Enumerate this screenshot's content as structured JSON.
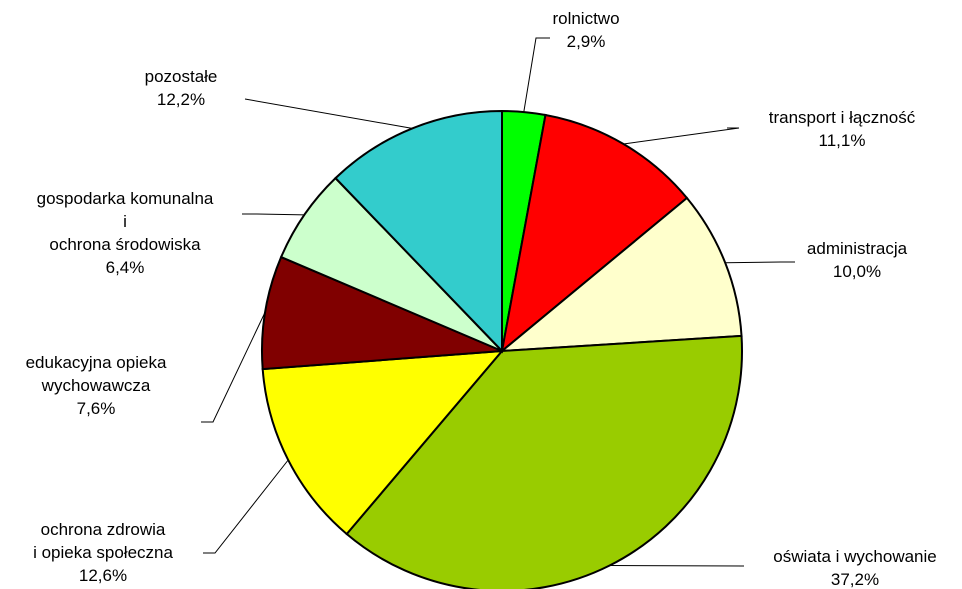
{
  "chart_data": {
    "type": "pie",
    "title": "",
    "slices": [
      {
        "label_lines": [
          "rolnictwo"
        ],
        "value_label": "2,9%",
        "value": 2.9,
        "color": "#00FF00"
      },
      {
        "label_lines": [
          "transport i łączność"
        ],
        "value_label": "11,1%",
        "value": 11.1,
        "color": "#FF0000"
      },
      {
        "label_lines": [
          "administracja"
        ],
        "value_label": "10,0%",
        "value": 10.0,
        "color": "#FFFFCC"
      },
      {
        "label_lines": [
          "oświata i wychowanie"
        ],
        "value_label": "37,2%",
        "value": 37.2,
        "color": "#99CC00"
      },
      {
        "label_lines": [
          "ochrona zdrowia",
          "i opieka społeczna"
        ],
        "value_label": "12,6%",
        "value": 12.6,
        "color": "#FFFF00"
      },
      {
        "label_lines": [
          "edukacyjna opieka",
          "wychowawcza"
        ],
        "value_label": "7,6%",
        "value": 7.6,
        "color": "#800000"
      },
      {
        "label_lines": [
          "gospodarka komunalna",
          "i",
          "ochrona środowiska"
        ],
        "value_label": "6,4%",
        "value": 6.4,
        "color": "#CCFFCC"
      },
      {
        "label_lines": [
          "pozostałe"
        ],
        "value_label": "12,2%",
        "value": 12.2,
        "color": "#33CCCC"
      }
    ],
    "start_angle": "12 o'clock",
    "direction": "clockwise",
    "legend": "none",
    "labels": "outside with leader lines"
  }
}
